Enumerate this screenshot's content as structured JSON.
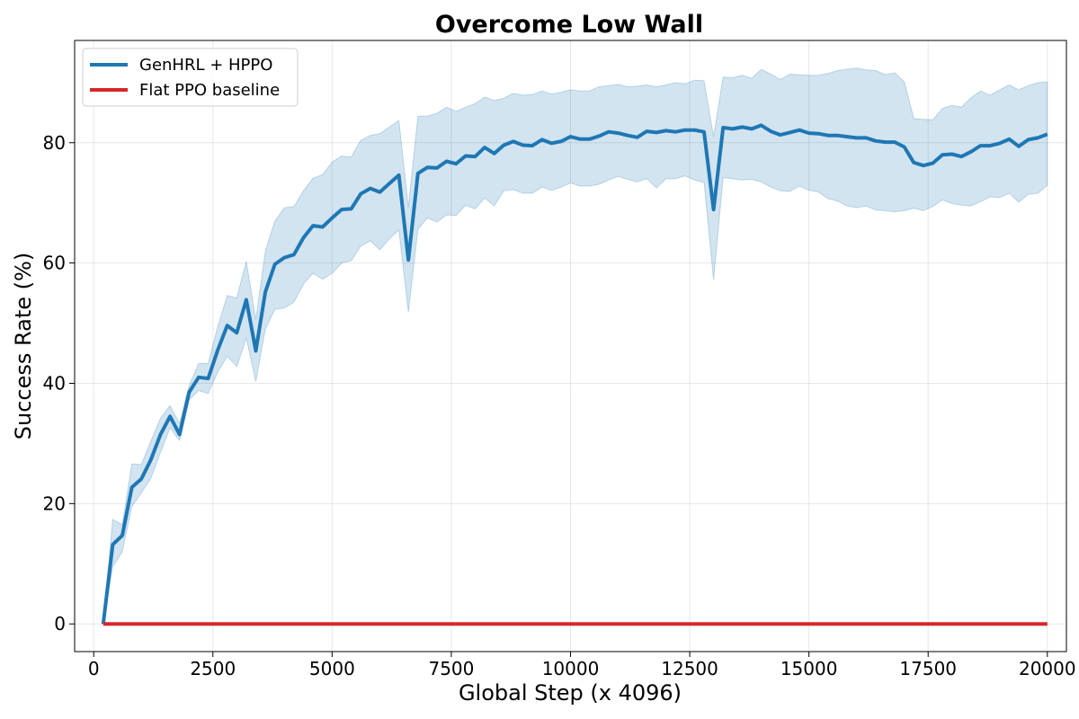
{
  "chart_data": {
    "type": "line",
    "title": "Overcome Low Wall",
    "xlabel": "Global Step (x 4096)",
    "ylabel": "Success Rate (%)",
    "xlim": [
      -400,
      20400
    ],
    "ylim": [
      -4.6,
      97
    ],
    "xticks": [
      0,
      2500,
      5000,
      7500,
      10000,
      12500,
      15000,
      17500,
      20000
    ],
    "yticks": [
      0,
      20,
      40,
      60,
      80
    ],
    "grid": true,
    "legend_position": "top-left",
    "series": [
      {
        "name": "GenHRL + HPPO",
        "color": "#1f77b4",
        "band_color": "#1f77b4",
        "x": [
          200,
          400,
          600,
          800,
          1000,
          1200,
          1400,
          1600,
          1800,
          2000,
          2200,
          2400,
          2600,
          2800,
          3000,
          3200,
          3400,
          3600,
          3800,
          4000,
          4200,
          4400,
          4600,
          4800,
          5000,
          5200,
          5400,
          5600,
          5800,
          6000,
          6200,
          6400,
          6600,
          6800,
          7000,
          7200,
          7400,
          7600,
          7800,
          8000,
          8200,
          8400,
          8600,
          8800,
          9000,
          9200,
          9400,
          9600,
          9800,
          10000,
          10200,
          10400,
          10600,
          10800,
          11000,
          11200,
          11400,
          11600,
          11800,
          12000,
          12200,
          12400,
          12600,
          12800,
          13000,
          13200,
          13400,
          13600,
          13800,
          14000,
          14200,
          14400,
          14600,
          14800,
          15000,
          15200,
          15400,
          15600,
          15800,
          16000,
          16200,
          16400,
          16600,
          16800,
          17000,
          17200,
          17400,
          17600,
          17800,
          18000,
          18200,
          18400,
          18600,
          18800,
          19000,
          19200,
          19400,
          19600,
          19800,
          20000
        ],
        "values": [
          0,
          13.2,
          14.7,
          22.7,
          24.1,
          27.3,
          31.5,
          34.5,
          31.5,
          38.5,
          41.0,
          40.8,
          45.5,
          49.6,
          48.4,
          53.9,
          45.4,
          55.2,
          59.8,
          60.9,
          61.4,
          64.2,
          66.2,
          66.0,
          67.5,
          68.9,
          69.0,
          71.5,
          72.4,
          71.8,
          73.2,
          74.6,
          60.5,
          74.9,
          75.9,
          75.8,
          76.9,
          76.5,
          77.8,
          77.7,
          79.2,
          78.2,
          79.6,
          80.2,
          79.6,
          79.5,
          80.5,
          79.9,
          80.2,
          81.0,
          80.6,
          80.6,
          81.1,
          81.8,
          81.6,
          81.2,
          80.9,
          81.9,
          81.7,
          82.0,
          81.8,
          82.1,
          82.1,
          81.8,
          68.9,
          82.5,
          82.3,
          82.6,
          82.3,
          82.9,
          81.9,
          81.3,
          81.7,
          82.1,
          81.6,
          81.5,
          81.2,
          81.2,
          81.0,
          80.8,
          80.8,
          80.3,
          80.1,
          80.1,
          79.3,
          76.7,
          76.2,
          76.6,
          78.0,
          78.1,
          77.7,
          78.5,
          79.5,
          79.5,
          79.9,
          80.6,
          79.4,
          80.5,
          80.8,
          81.4
        ],
        "lower": [
          0,
          9.5,
          12.0,
          19.5,
          21.8,
          24.2,
          28.5,
          32.6,
          30.5,
          37.2,
          38.8,
          38.3,
          41.8,
          44.5,
          42.8,
          47.5,
          40.3,
          49.0,
          52.3,
          52.5,
          53.5,
          56.5,
          58.3,
          57.3,
          58.3,
          60.0,
          60.4,
          62.8,
          63.7,
          62.2,
          64.0,
          65.5,
          51.8,
          65.6,
          67.5,
          66.8,
          68.0,
          67.9,
          69.6,
          69.0,
          70.8,
          69.5,
          72.0,
          72.2,
          71.6,
          71.6,
          72.6,
          72.1,
          72.6,
          73.3,
          72.8,
          72.8,
          73.1,
          73.8,
          74.4,
          73.9,
          73.5,
          74.0,
          72.5,
          74.0,
          74.0,
          74.5,
          73.8,
          73.4,
          57.2,
          74.2,
          74.0,
          73.8,
          73.9,
          73.5,
          72.6,
          72.0,
          71.9,
          72.8,
          72.1,
          71.8,
          70.7,
          70.3,
          69.5,
          69.2,
          69.5,
          68.8,
          68.7,
          68.5,
          68.7,
          69.1,
          68.7,
          69.4,
          70.5,
          69.9,
          69.6,
          69.5,
          70.2,
          71.0,
          70.9,
          71.6,
          70.1,
          71.4,
          71.6,
          72.9
        ],
        "upper": [
          0,
          17.4,
          16.5,
          26.6,
          26.5,
          30.4,
          34.2,
          36.3,
          33.3,
          39.6,
          43.3,
          43.3,
          49.4,
          54.6,
          54.2,
          60.3,
          50.6,
          62.0,
          67.0,
          69.2,
          69.4,
          72.0,
          74.1,
          74.7,
          76.8,
          77.8,
          77.6,
          80.4,
          81.2,
          81.5,
          82.6,
          83.7,
          69.3,
          84.4,
          84.4,
          84.9,
          85.9,
          85.2,
          85.9,
          86.5,
          87.6,
          87.0,
          87.4,
          88.2,
          87.9,
          88.0,
          88.6,
          88.1,
          88.4,
          88.8,
          88.6,
          88.6,
          89.3,
          89.5,
          89.7,
          89.3,
          89.4,
          89.6,
          89.3,
          89.6,
          90.0,
          89.8,
          90.4,
          90.3,
          81.0,
          90.9,
          90.8,
          91.2,
          90.7,
          92.2,
          91.4,
          90.5,
          91.4,
          91.3,
          91.2,
          91.2,
          91.5,
          92.0,
          92.2,
          92.4,
          92.1,
          92.0,
          91.3,
          91.6,
          90.1,
          84.0,
          83.9,
          83.8,
          85.7,
          86.2,
          85.9,
          87.5,
          88.6,
          87.9,
          88.8,
          89.6,
          88.8,
          89.5,
          90.0,
          90.1
        ]
      },
      {
        "name": "Flat PPO baseline",
        "color": "#d62728",
        "x": [
          200,
          20000
        ],
        "values": [
          0,
          0
        ]
      }
    ]
  }
}
